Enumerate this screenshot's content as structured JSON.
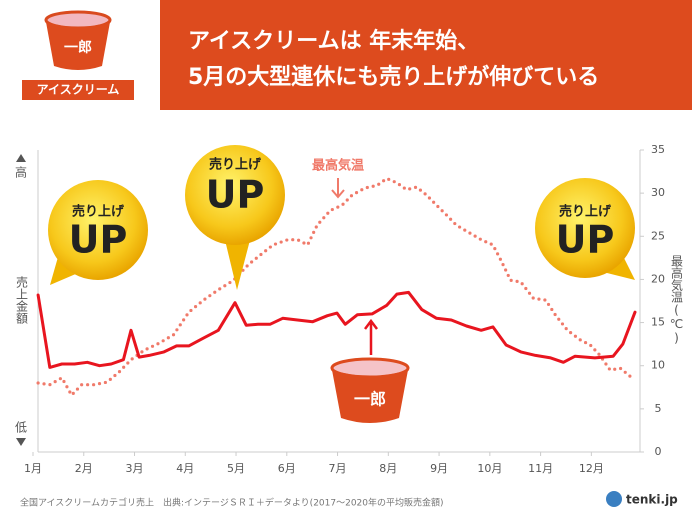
{
  "chart_data": {
    "type": "line",
    "title": "アイスクリームは 年末年始、",
    "subtitle": "5月の大型連休にも売り上げが伸びている",
    "brand": "一郎",
    "product": "アイスクリーム",
    "bubble_small": "売り上げ",
    "bubble_big": "UP",
    "y_high": "高",
    "y_low": "低",
    "y2label": "最高気温(℃)",
    "source": "全国アイスクリームカテゴリ売上　出典:インテージＳＲＩ＋データより(2017〜2020年の平均販売金額)",
    "logo": "tenki.jp",
    "xlim": [
      1,
      12.86
    ],
    "xticks": [
      {
        "value": 1,
        "label": "1月"
      },
      {
        "value": 2,
        "label": "2月"
      },
      {
        "value": 3,
        "label": "3月"
      },
      {
        "value": 4,
        "label": "4月"
      },
      {
        "value": 5,
        "label": "5月"
      },
      {
        "value": 6,
        "label": "6月"
      },
      {
        "value": 7,
        "label": "7月"
      },
      {
        "value": 8,
        "label": "8月"
      },
      {
        "value": 9,
        "label": "9月"
      },
      {
        "value": 10,
        "label": "10月"
      },
      {
        "value": 11,
        "label": "11月"
      },
      {
        "value": 12,
        "label": "12月"
      }
    ],
    "ylim": [
      0,
      35
    ],
    "y2lim": [
      0,
      35
    ],
    "y2ticks": [
      0,
      5,
      10,
      15,
      20,
      25,
      30,
      35
    ],
    "series": [
      {
        "name": "売上金額",
        "color": "#e8151f",
        "style": "solid",
        "x": [
          1.1,
          1.33,
          1.57,
          1.82,
          2.07,
          2.31,
          2.54,
          2.78,
          2.93,
          3.09,
          3.29,
          3.58,
          3.83,
          4.07,
          4.36,
          4.65,
          4.98,
          5.2,
          5.43,
          5.67,
          5.92,
          6.21,
          6.51,
          6.8,
          6.99,
          7.15,
          7.39,
          7.68,
          7.97,
          8.17,
          8.4,
          8.66,
          8.95,
          9.24,
          9.54,
          9.83,
          10.06,
          10.32,
          10.61,
          10.9,
          11.2,
          11.45,
          11.68,
          12.07,
          12.43,
          12.62,
          12.86
        ],
        "values": [
          18.2,
          9.8,
          10.2,
          10.2,
          10.4,
          10.0,
          10.2,
          10.7,
          14.1,
          11.0,
          11.2,
          11.6,
          12.3,
          12.3,
          13.2,
          14.1,
          17.3,
          14.7,
          14.8,
          14.8,
          15.5,
          15.3,
          15.1,
          15.8,
          16.1,
          14.8,
          15.9,
          16.0,
          17.0,
          18.3,
          18.5,
          16.5,
          15.5,
          15.3,
          14.6,
          14.1,
          14.5,
          12.4,
          11.6,
          11.2,
          10.9,
          10.4,
          11.1,
          10.9,
          11.1,
          12.5,
          16.2
        ]
      },
      {
        "name": "最高気温",
        "color": "#f07a6a",
        "style": "dotted",
        "axis": "y2",
        "x": [
          1.1,
          1.33,
          1.57,
          1.76,
          1.96,
          2.21,
          2.46,
          2.7,
          2.93,
          3.19,
          3.48,
          3.77,
          4.07,
          4.36,
          4.65,
          4.95,
          5.24,
          5.47,
          5.73,
          6.02,
          6.21,
          6.41,
          6.6,
          6.86,
          7.09,
          7.29,
          7.54,
          7.78,
          7.97,
          8.17,
          8.36,
          8.56,
          8.75,
          8.95,
          9.14,
          9.34,
          9.57,
          9.83,
          10.06,
          10.22,
          10.41,
          10.61,
          10.86,
          11.1,
          11.29,
          11.53,
          11.78,
          11.98,
          12.17,
          12.37,
          12.57,
          12.76
        ],
        "values": [
          8.0,
          7.8,
          8.6,
          6.6,
          7.8,
          7.8,
          8.1,
          9.3,
          10.7,
          11.8,
          12.6,
          13.6,
          16.2,
          17.6,
          18.8,
          19.9,
          21.7,
          22.8,
          24.0,
          24.6,
          24.6,
          24.0,
          26.3,
          28.0,
          28.6,
          29.8,
          30.6,
          30.9,
          31.7,
          31.2,
          30.4,
          30.7,
          29.8,
          28.6,
          27.5,
          26.3,
          25.5,
          24.6,
          24.0,
          22.2,
          19.9,
          19.7,
          17.8,
          17.6,
          15.9,
          14.1,
          13.0,
          12.4,
          11.2,
          9.5,
          9.7,
          8.8
        ]
      }
    ]
  }
}
